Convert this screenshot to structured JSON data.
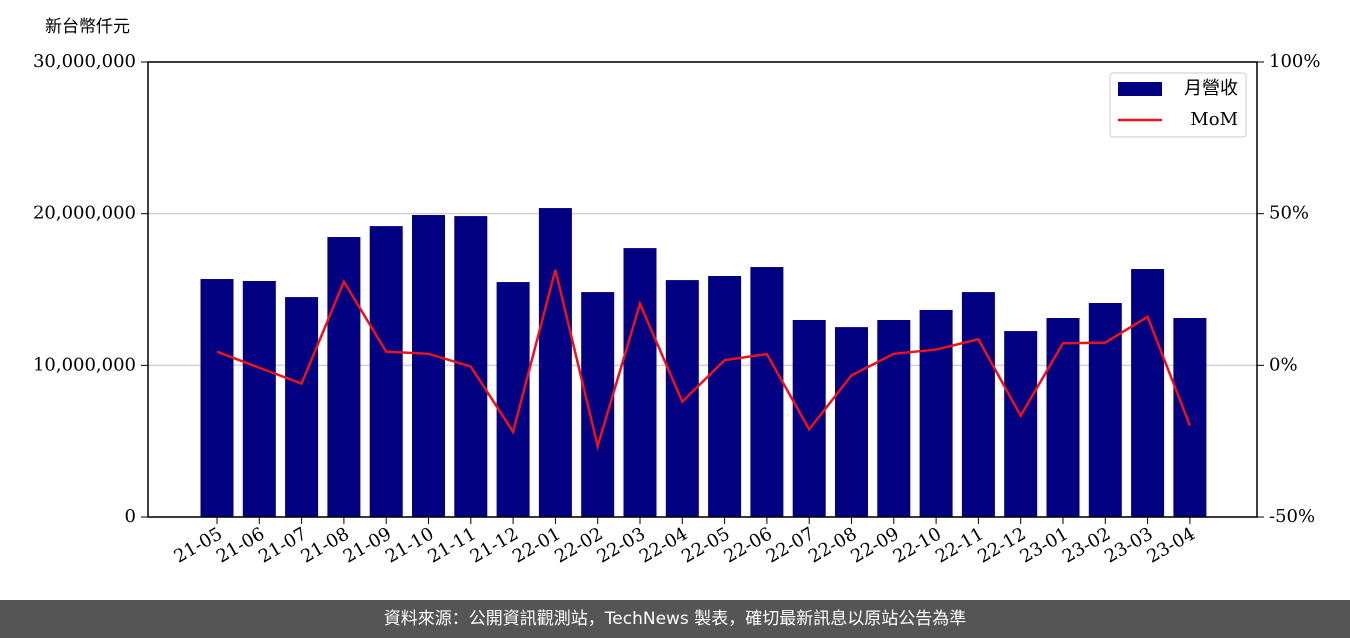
{
  "chart_data": {
    "type": "bar",
    "y_label": "新台幣仟元",
    "categories": [
      "21-05",
      "21-06",
      "21-07",
      "21-08",
      "21-09",
      "21-10",
      "21-11",
      "21-12",
      "22-01",
      "22-02",
      "22-03",
      "22-04",
      "22-05",
      "22-06",
      "22-07",
      "22-08",
      "22-09",
      "22-10",
      "22-11",
      "22-12",
      "23-01",
      "23-02",
      "23-03",
      "23-04"
    ],
    "series": [
      {
        "name": "月營收",
        "type": "bar",
        "color": "#000080",
        "values": [
          15690000,
          15560000,
          14500000,
          18460000,
          19180000,
          19910000,
          19840000,
          15490000,
          20370000,
          14830000,
          17730000,
          15620000,
          15890000,
          16480000,
          12990000,
          12520000,
          12990000,
          13650000,
          14830000,
          12260000,
          13120000,
          14110000,
          16350000,
          13120000
        ]
      },
      {
        "name": "MoM",
        "type": "line",
        "color": "#e8141c",
        "axis": "y2",
        "values": [
          4.5,
          -0.8,
          -6,
          27.6,
          4.5,
          3.8,
          -0.4,
          -21.9,
          31.5,
          -26.6,
          20.3,
          -12,
          1.7,
          3.7,
          -21.1,
          -3.3,
          3.8,
          5.2,
          8.6,
          -16.6,
          7.3,
          7.5,
          16,
          -19.8
        ]
      }
    ],
    "ylim": [
      0,
      30000000
    ],
    "yticks": [
      0,
      {
        "value": 10000000,
        "label": "10,000,000"
      },
      {
        "value": 20000000,
        "label": "20,000,000"
      },
      {
        "value": 30000000,
        "label": "30,000,000"
      }
    ],
    "y2lim": [
      -50,
      100
    ],
    "y2ticks": [
      {
        "value": -50,
        "label": "-50%"
      },
      {
        "value": 0,
        "label": "0%"
      },
      {
        "value": 50,
        "label": "50%"
      },
      {
        "value": 100,
        "label": "100%"
      }
    ],
    "grid": true,
    "legend": "upper right"
  },
  "footer": "資料來源：公開資訊觀測站，TechNews 製表，確切最新訊息以原站公告為準"
}
